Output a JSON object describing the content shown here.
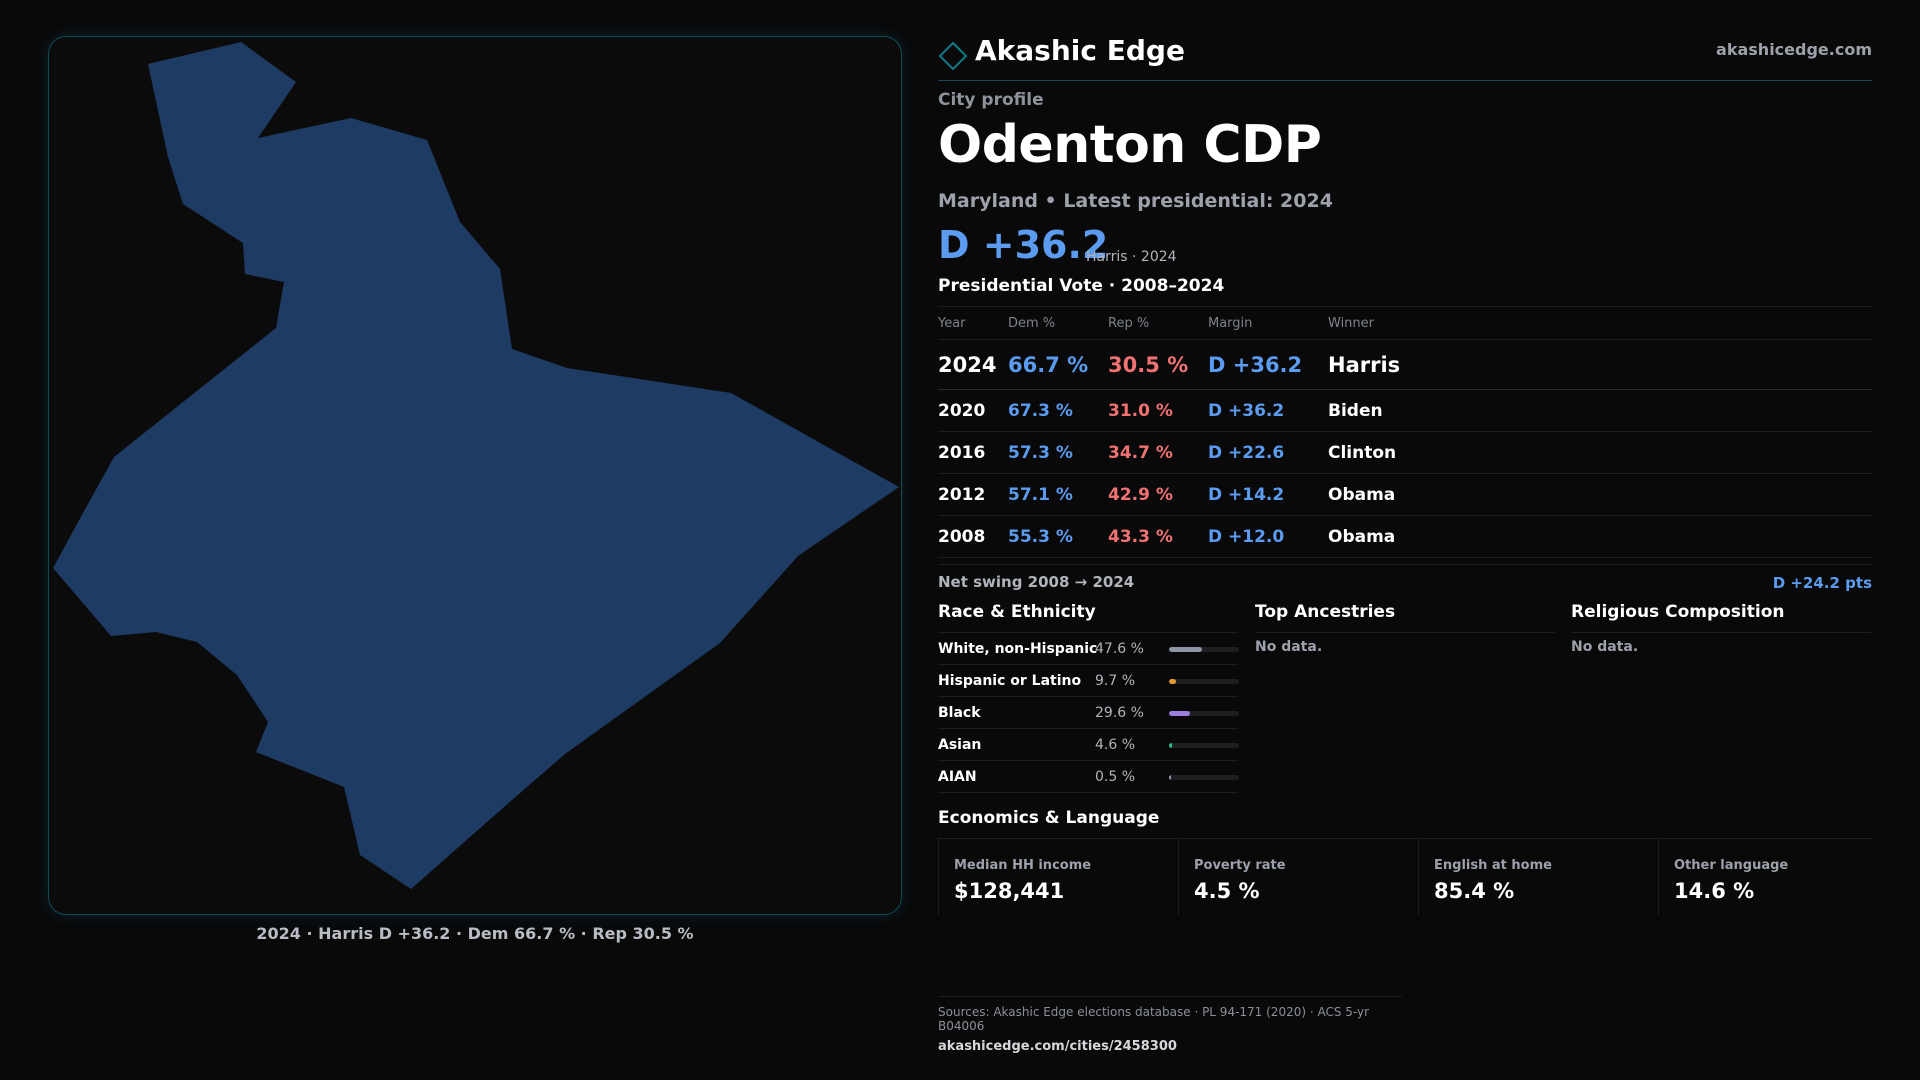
{
  "brand": {
    "name": "Akashic Edge",
    "url": "akashicedge.com",
    "accent": "#0f7b86"
  },
  "eyebrow": "City profile",
  "city": "Odenton CDP",
  "subtitle": "Maryland • Latest presidential: 2024",
  "margin_headline": "D +36.2",
  "margin_note": "Harris · 2024",
  "map": {
    "fill": "#1e3b63",
    "border": "#0f4a55",
    "caption": "2024 · Harris D +36.2 · Dem 66.7 % · Rep 30.5 %"
  },
  "vote": {
    "title": "Presidential Vote · 2008–2024",
    "headers": {
      "year": "Year",
      "dem": "Dem %",
      "rep": "Rep %",
      "margin": "Margin",
      "winner": "Winner"
    },
    "rows": [
      {
        "year": "2024",
        "dem": "66.7 %",
        "rep": "30.5 %",
        "margin": "D +36.2",
        "winner": "Harris"
      },
      {
        "year": "2020",
        "dem": "67.3 %",
        "rep": "31.0 %",
        "margin": "D +36.2",
        "winner": "Biden"
      },
      {
        "year": "2016",
        "dem": "57.3 %",
        "rep": "34.7 %",
        "margin": "D +22.6",
        "winner": "Clinton"
      },
      {
        "year": "2012",
        "dem": "57.1 %",
        "rep": "42.9 %",
        "margin": "D +14.2",
        "winner": "Obama"
      },
      {
        "year": "2008",
        "dem": "55.3 %",
        "rep": "43.3 %",
        "margin": "D +12.0",
        "winner": "Obama"
      }
    ],
    "dem_color": "#5b9cf0",
    "rep_color": "#f07272"
  },
  "swing": {
    "label": "Net swing 2008 → 2024",
    "value": "D +24.2 pts"
  },
  "race": {
    "title": "Race & Ethnicity",
    "rows": [
      {
        "label": "White, non-Hispanic",
        "value": "47.6 %",
        "fraction": 0.476,
        "color": "#8e97a6"
      },
      {
        "label": "Hispanic or Latino",
        "value": "9.7 %",
        "fraction": 0.097,
        "color": "#e39a2c"
      },
      {
        "label": "Black",
        "value": "29.6 %",
        "fraction": 0.296,
        "color": "#9c7fe0"
      },
      {
        "label": "Asian",
        "value": "4.6 %",
        "fraction": 0.046,
        "color": "#2ec08a"
      },
      {
        "label": "AIAN",
        "value": "0.5 %",
        "fraction": 0.005,
        "color": "#8e97a6"
      }
    ]
  },
  "ancestries": {
    "title": "Top Ancestries",
    "empty": "No data."
  },
  "religion": {
    "title": "Religious Composition",
    "empty": "No data."
  },
  "economics": {
    "title": "Economics & Language",
    "cells": [
      {
        "label": "Median HH income",
        "value": "$128,441"
      },
      {
        "label": "Poverty rate",
        "value": "4.5 %"
      },
      {
        "label": "English at home",
        "value": "85.4 %"
      },
      {
        "label": "Other language",
        "value": "14.6 %"
      }
    ]
  },
  "footer": {
    "sources": "Sources: Akashic Edge elections database · PL 94-171 (2020) · ACS 5-yr B04006",
    "url": "akashicedge.com/cities/2458300"
  }
}
